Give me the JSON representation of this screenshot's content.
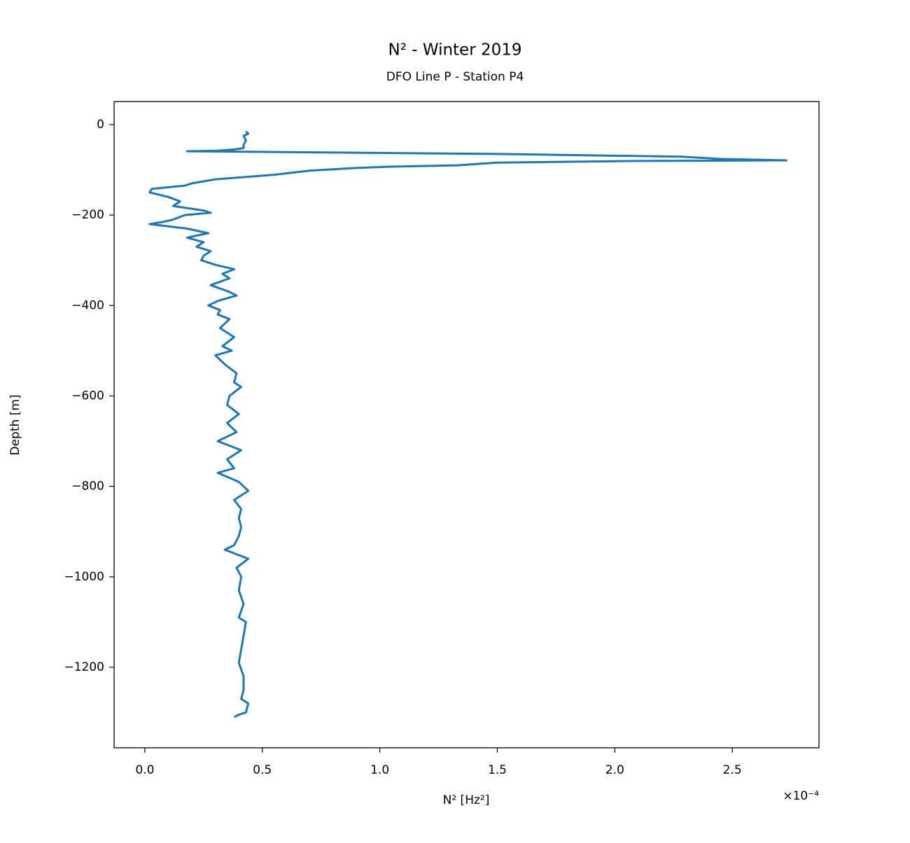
{
  "chart_data": {
    "type": "line",
    "title": "N² - Winter 2019",
    "subtitle": "DFO Line P - Station P4",
    "x_label": "N² [Hz²]",
    "y_label": "Depth [m]",
    "x_offset_label": "×10⁻⁴",
    "color": "#1f77b4",
    "xlim": [
      -0.131,
      2.869
    ],
    "ylim": [
      51,
      -1378
    ],
    "xticks": [
      {
        "value": 0,
        "label": "0.0"
      },
      0.5,
      {
        "value": 1,
        "label": "1.0"
      },
      1.5,
      {
        "value": 2,
        "label": "2.0"
      },
      2.5
    ],
    "yticks": [
      0,
      {
        "value": -200,
        "label": "−200"
      },
      {
        "value": -400,
        "label": "−400"
      },
      {
        "value": -600,
        "label": "−600"
      },
      {
        "value": -800,
        "label": "−800"
      },
      {
        "value": -1000,
        "label": "−1000"
      },
      {
        "value": -1200,
        "label": "−1200"
      }
    ],
    "x": [
      0.43,
      0.44,
      0.42,
      0.43,
      0.42,
      0.42,
      0.38,
      0.3,
      0.18,
      1.5,
      2.28,
      2.45,
      2.73,
      2.1,
      1.5,
      1.33,
      1.05,
      0.9,
      0.7,
      0.55,
      0.3,
      0.2,
      0.17,
      0.03,
      0.02,
      0.1,
      0.15,
      0.12,
      0.25,
      0.28,
      0.17,
      0.12,
      0.08,
      0.02,
      0.18,
      0.27,
      0.18,
      0.25,
      0.22,
      0.28,
      0.25,
      0.24,
      0.3,
      0.38,
      0.33,
      0.36,
      0.28,
      0.36,
      0.39,
      0.31,
      0.27,
      0.32,
      0.31,
      0.36,
      0.32,
      0.38,
      0.33,
      0.37,
      0.3,
      0.34,
      0.39,
      0.38,
      0.41,
      0.36,
      0.35,
      0.4,
      0.35,
      0.39,
      0.31,
      0.41,
      0.35,
      0.38,
      0.31,
      0.4,
      0.44,
      0.38,
      0.41,
      0.4,
      0.41,
      0.4,
      0.38,
      0.34,
      0.44,
      0.39,
      0.41,
      0.4,
      0.42,
      0.4,
      0.43,
      0.42,
      0.41,
      0.4,
      0.42,
      0.42,
      0.41,
      0.44,
      0.43,
      0.4,
      0.38
    ],
    "values": [
      -15,
      -20,
      -25,
      -35,
      -45,
      -52,
      -55,
      -58,
      -59,
      -65,
      -71,
      -76,
      -79,
      -80.5,
      -84,
      -90,
      -93,
      -96,
      -102,
      -111,
      -121,
      -130,
      -135,
      -142,
      -150,
      -160,
      -170,
      -180,
      -190,
      -195,
      -200,
      -210,
      -215,
      -220,
      -230,
      -240,
      -250,
      -260,
      -270,
      -280,
      -290,
      -300,
      -310,
      -320,
      -330,
      -340,
      -355,
      -370,
      -378,
      -390,
      -400,
      -410,
      -420,
      -430,
      -450,
      -470,
      -490,
      -500,
      -510,
      -530,
      -550,
      -570,
      -580,
      -600,
      -620,
      -640,
      -660,
      -680,
      -700,
      -720,
      -740,
      -760,
      -770,
      -790,
      -810,
      -830,
      -850,
      -870,
      -890,
      -910,
      -930,
      -940,
      -960,
      -980,
      -1000,
      -1030,
      -1060,
      -1090,
      -1100,
      -1130,
      -1160,
      -1190,
      -1220,
      -1250,
      -1270,
      -1280,
      -1300,
      -1305,
      -1310
    ]
  }
}
